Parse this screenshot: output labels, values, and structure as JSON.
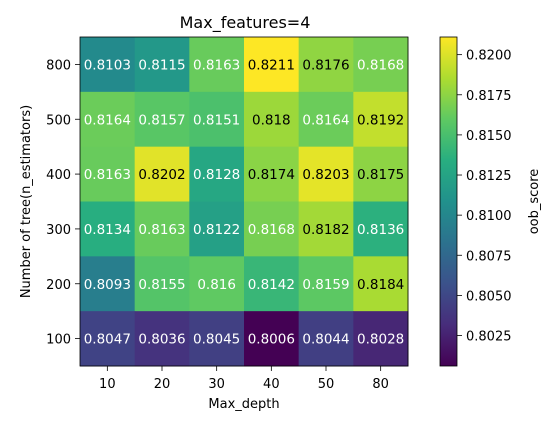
{
  "chart_data": {
    "type": "heatmap",
    "title": "Max_features=4",
    "xlabel": "Max_depth",
    "ylabel": "Number of tree(n_estimators)",
    "x_categories": [
      "10",
      "20",
      "30",
      "40",
      "50",
      "80"
    ],
    "y_categories": [
      "800",
      "500",
      "400",
      "300",
      "200",
      "100"
    ],
    "values": [
      [
        0.8103,
        0.8115,
        0.8163,
        0.8211,
        0.8176,
        0.8168
      ],
      [
        0.8164,
        0.8157,
        0.8151,
        0.818,
        0.8164,
        0.8192
      ],
      [
        0.8163,
        0.8202,
        0.8128,
        0.8174,
        0.8203,
        0.8175
      ],
      [
        0.8134,
        0.8163,
        0.8122,
        0.8168,
        0.8182,
        0.8136
      ],
      [
        0.8093,
        0.8155,
        0.816,
        0.8142,
        0.8159,
        0.8184
      ],
      [
        0.8047,
        0.8036,
        0.8045,
        0.8006,
        0.8044,
        0.8028
      ]
    ],
    "value_labels": [
      [
        "0.8103",
        "0.8115",
        "0.8163",
        "0.8211",
        "0.8176",
        "0.8168"
      ],
      [
        "0.8164",
        "0.8157",
        "0.8151",
        "0.818",
        "0.8164",
        "0.8192"
      ],
      [
        "0.8163",
        "0.8202",
        "0.8128",
        "0.8174",
        "0.8203",
        "0.8175"
      ],
      [
        "0.8134",
        "0.8163",
        "0.8122",
        "0.8168",
        "0.8182",
        "0.8136"
      ],
      [
        "0.8093",
        "0.8155",
        "0.816",
        "0.8142",
        "0.8159",
        "0.8184"
      ],
      [
        "0.8047",
        "0.8036",
        "0.8045",
        "0.8006",
        "0.8044",
        "0.8028"
      ]
    ],
    "colormap": "viridis",
    "colorbar": {
      "label": "oob_score",
      "range": [
        0.8006,
        0.8211
      ],
      "ticks": [
        0.8025,
        0.805,
        0.8075,
        0.81,
        0.8125,
        0.815,
        0.8175,
        0.82
      ],
      "tick_labels": [
        "0.8025",
        "0.8050",
        "0.8075",
        "0.8100",
        "0.8125",
        "0.8150",
        "0.8175",
        "0.8200"
      ]
    },
    "grid": false
  }
}
